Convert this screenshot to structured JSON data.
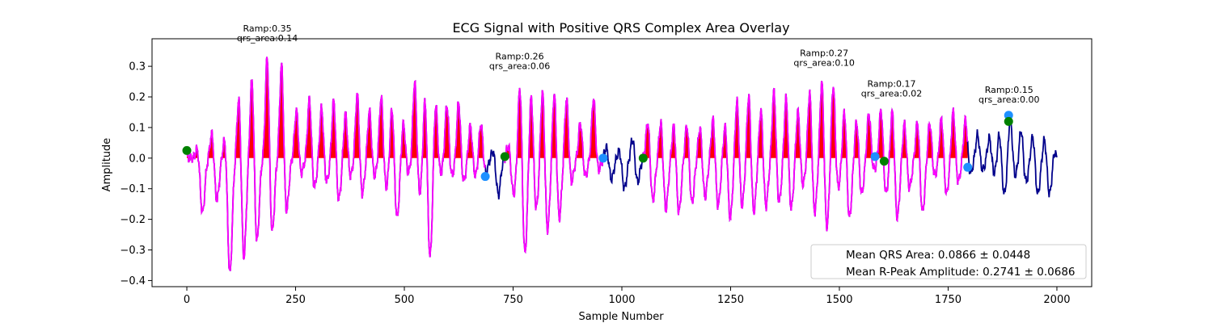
{
  "chart_data": {
    "type": "line",
    "title": "ECG Signal with Positive QRS Complex Area Overlay",
    "xlabel": "Sample Number",
    "ylabel": "Amplitude",
    "xlim": [
      -80,
      2080
    ],
    "ylim": [
      -0.42,
      0.39
    ],
    "xticks": [
      0,
      250,
      500,
      750,
      1000,
      1250,
      1500,
      1750,
      2000
    ],
    "yticks": [
      -0.4,
      -0.3,
      -0.2,
      -0.1,
      0.0,
      0.1,
      0.2,
      0.3
    ],
    "grid": false,
    "colors": {
      "signal": "#00008b",
      "qrs_segment": "#ff00ff",
      "area_fill": "#ff0000",
      "onset_marker": "#008000",
      "offset_marker": "#1e90ff"
    },
    "segments": [
      {
        "start": 0,
        "end": 686
      },
      {
        "start": 731,
        "end": 957
      },
      {
        "start": 1049,
        "end": 1795
      }
    ],
    "onset_markers": [
      {
        "x": 0,
        "y": 0.025
      },
      {
        "x": 731,
        "y": 0.005
      },
      {
        "x": 1049,
        "y": 0.0
      },
      {
        "x": 1603,
        "y": -0.01
      },
      {
        "x": 1889,
        "y": 0.12
      }
    ],
    "offset_markers": [
      {
        "x": 686,
        "y": -0.06
      },
      {
        "x": 957,
        "y": 0.0
      },
      {
        "x": 1582,
        "y": 0.005
      },
      {
        "x": 1795,
        "y": -0.03
      },
      {
        "x": 1889,
        "y": 0.14
      }
    ],
    "annotations": [
      {
        "x": 185,
        "y": 0.35,
        "lines": [
          "Ramp:0.35",
          "qrs_area:0.14"
        ]
      },
      {
        "x": 765,
        "y": 0.26,
        "lines": [
          "Ramp:0.26",
          "qrs_area:0.06"
        ]
      },
      {
        "x": 1465,
        "y": 0.27,
        "lines": [
          "Ramp:0.27",
          "qrs_area:0.10"
        ]
      },
      {
        "x": 1620,
        "y": 0.17,
        "lines": [
          "Ramp:0.17",
          "qrs_area:0.02"
        ]
      },
      {
        "x": 1890,
        "y": 0.15,
        "lines": [
          "Ramp:0.15",
          "qrs_area:0.00"
        ]
      }
    ],
    "legend": {
      "placement": "lower-right",
      "entries": [
        "Mean QRS Area: 0.0866 ± 0.0448",
        "Mean R-Peak Amplitude: 0.2741 ± 0.0686"
      ]
    },
    "beats": [
      {
        "c": 25,
        "a": 0.04,
        "t": -0.18
      },
      {
        "c": 58,
        "a": 0.09,
        "t": -0.14
      },
      {
        "c": 88,
        "a": 0.08,
        "t": -0.38
      },
      {
        "c": 120,
        "a": 0.22,
        "t": -0.33
      },
      {
        "c": 150,
        "a": 0.28,
        "t": -0.28
      },
      {
        "c": 185,
        "a": 0.35,
        "t": -0.25
      },
      {
        "c": 218,
        "a": 0.32,
        "t": -0.18
      },
      {
        "c": 252,
        "a": 0.16,
        "t": -0.05
      },
      {
        "c": 282,
        "a": 0.2,
        "t": -0.1
      },
      {
        "c": 310,
        "a": 0.17,
        "t": -0.08
      },
      {
        "c": 338,
        "a": 0.2,
        "t": -0.14
      },
      {
        "c": 365,
        "a": 0.15,
        "t": -0.06
      },
      {
        "c": 392,
        "a": 0.22,
        "t": -0.12
      },
      {
        "c": 420,
        "a": 0.16,
        "t": -0.06
      },
      {
        "c": 447,
        "a": 0.21,
        "t": -0.1
      },
      {
        "c": 472,
        "a": 0.18,
        "t": -0.2
      },
      {
        "c": 498,
        "a": 0.12,
        "t": -0.05
      },
      {
        "c": 524,
        "a": 0.26,
        "t": -0.12
      },
      {
        "c": 548,
        "a": 0.22,
        "t": -0.33
      },
      {
        "c": 572,
        "a": 0.19,
        "t": -0.05
      },
      {
        "c": 598,
        "a": 0.18,
        "t": -0.06
      },
      {
        "c": 625,
        "a": 0.19,
        "t": -0.08
      },
      {
        "c": 652,
        "a": 0.11,
        "t": -0.06
      },
      {
        "c": 676,
        "a": 0.12,
        "t": -0.05
      },
      {
        "c": 705,
        "a": 0.03,
        "t": -0.12
      },
      {
        "c": 740,
        "a": 0.05,
        "t": -0.12
      },
      {
        "c": 766,
        "a": 0.26,
        "t": -0.32
      },
      {
        "c": 792,
        "a": 0.22,
        "t": -0.17
      },
      {
        "c": 818,
        "a": 0.24,
        "t": -0.24
      },
      {
        "c": 845,
        "a": 0.23,
        "t": -0.2
      },
      {
        "c": 873,
        "a": 0.2,
        "t": -0.08
      },
      {
        "c": 905,
        "a": 0.12,
        "t": -0.06
      },
      {
        "c": 935,
        "a": 0.2,
        "t": -0.04
      },
      {
        "c": 965,
        "a": 0.04,
        "t": -0.07
      },
      {
        "c": 995,
        "a": 0.03,
        "t": -0.1
      },
      {
        "c": 1025,
        "a": 0.07,
        "t": -0.08
      },
      {
        "c": 1060,
        "a": 0.13,
        "t": -0.14
      },
      {
        "c": 1090,
        "a": 0.13,
        "t": -0.17
      },
      {
        "c": 1120,
        "a": 0.12,
        "t": -0.18
      },
      {
        "c": 1150,
        "a": 0.12,
        "t": -0.15
      },
      {
        "c": 1180,
        "a": 0.11,
        "t": -0.13
      },
      {
        "c": 1210,
        "a": 0.14,
        "t": -0.16
      },
      {
        "c": 1238,
        "a": 0.12,
        "t": -0.2
      },
      {
        "c": 1265,
        "a": 0.2,
        "t": -0.16
      },
      {
        "c": 1292,
        "a": 0.22,
        "t": -0.18
      },
      {
        "c": 1320,
        "a": 0.17,
        "t": -0.16
      },
      {
        "c": 1350,
        "a": 0.23,
        "t": -0.15
      },
      {
        "c": 1378,
        "a": 0.21,
        "t": -0.17
      },
      {
        "c": 1405,
        "a": 0.16,
        "t": -0.09
      },
      {
        "c": 1432,
        "a": 0.23,
        "t": -0.18
      },
      {
        "c": 1460,
        "a": 0.27,
        "t": -0.23
      },
      {
        "c": 1486,
        "a": 0.25,
        "t": -0.1
      },
      {
        "c": 1512,
        "a": 0.17,
        "t": -0.2
      },
      {
        "c": 1540,
        "a": 0.13,
        "t": -0.12
      },
      {
        "c": 1568,
        "a": 0.15,
        "t": -0.04
      },
      {
        "c": 1596,
        "a": 0.17,
        "t": -0.12
      },
      {
        "c": 1622,
        "a": 0.17,
        "t": -0.2
      },
      {
        "c": 1650,
        "a": 0.12,
        "t": -0.1
      },
      {
        "c": 1680,
        "a": 0.13,
        "t": -0.18
      },
      {
        "c": 1708,
        "a": 0.12,
        "t": -0.06
      },
      {
        "c": 1735,
        "a": 0.14,
        "t": -0.12
      },
      {
        "c": 1762,
        "a": 0.16,
        "t": -0.08
      },
      {
        "c": 1790,
        "a": 0.13,
        "t": -0.05
      },
      {
        "c": 1818,
        "a": 0.08,
        "t": -0.04
      },
      {
        "c": 1845,
        "a": 0.07,
        "t": -0.05
      },
      {
        "c": 1868,
        "a": 0.09,
        "t": -0.12
      },
      {
        "c": 1893,
        "a": 0.14,
        "t": -0.06
      },
      {
        "c": 1918,
        "a": 0.1,
        "t": -0.08
      },
      {
        "c": 1945,
        "a": 0.08,
        "t": -0.12
      },
      {
        "c": 1972,
        "a": 0.07,
        "t": -0.12
      },
      {
        "c": 1995,
        "a": 0.03,
        "t": -0.04
      }
    ]
  }
}
